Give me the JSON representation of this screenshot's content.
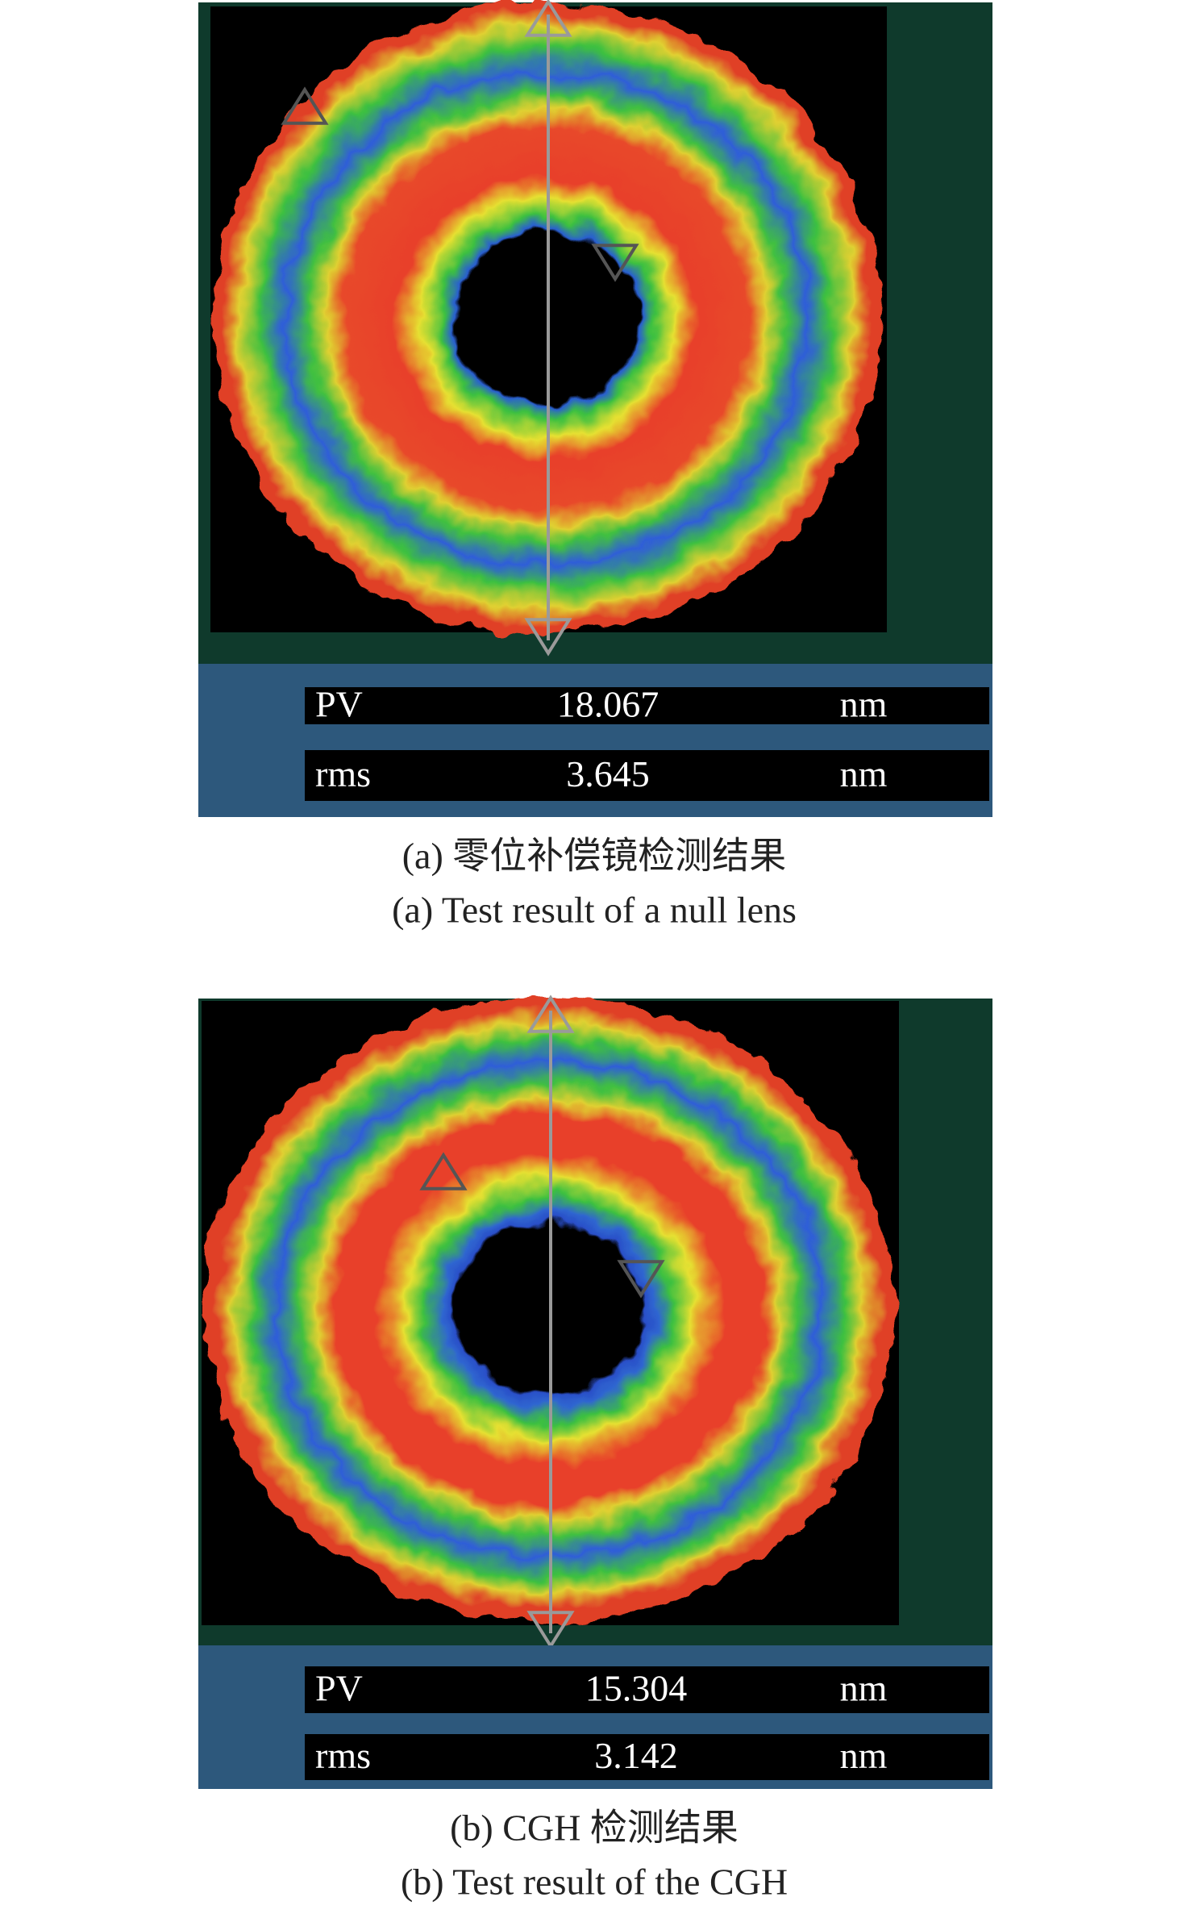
{
  "panels": [
    {
      "results": [
        {
          "label": "PV",
          "value": 18.067,
          "unit": "nm"
        },
        {
          "label": "rms",
          "value": 3.645,
          "unit": "nm"
        }
      ],
      "caption_cn": "(a) 零位补偿镜检测结果",
      "caption_en": "(a) Test result of a null lens"
    },
    {
      "results": [
        {
          "label": "PV",
          "value": 15.304,
          "unit": "nm"
        },
        {
          "label": "rms",
          "value": 3.142,
          "unit": "nm"
        }
      ],
      "caption_cn": "(b) CGH 检测结果",
      "caption_en": "(b) Test result of the CGH"
    }
  ]
}
